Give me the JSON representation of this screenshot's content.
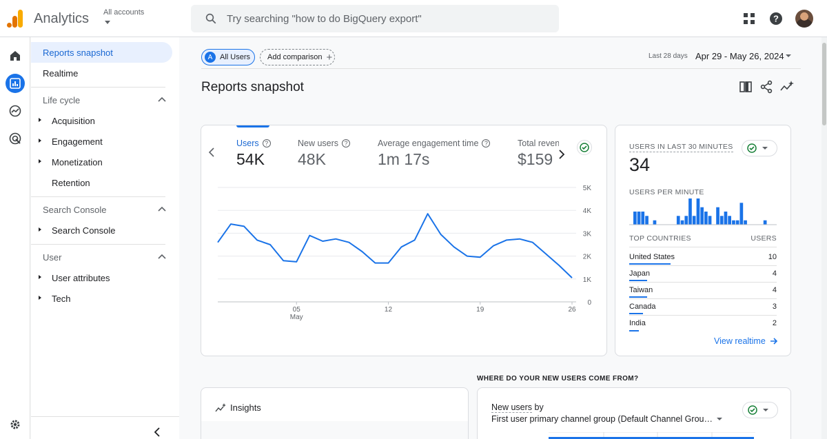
{
  "header": {
    "app_name": "Analytics",
    "accounts_label": "All accounts",
    "search_placeholder": "Try searching \"how to do BigQuery export\""
  },
  "sidebar": {
    "reports_snapshot": "Reports snapshot",
    "realtime": "Realtime",
    "sections": [
      {
        "title": "Life cycle",
        "items": [
          "Acquisition",
          "Engagement",
          "Monetization",
          "Retention"
        ]
      },
      {
        "title": "Search Console",
        "items": [
          "Search Console"
        ]
      },
      {
        "title": "User",
        "items": [
          "User attributes",
          "Tech"
        ]
      }
    ]
  },
  "toolbar": {
    "all_users": "All Users",
    "all_users_badge": "A",
    "add_comparison": "Add comparison",
    "date_label": "Last 28 days",
    "date_range": "Apr 29 - May 26, 2024"
  },
  "page": {
    "title": "Reports snapshot"
  },
  "metrics": [
    {
      "label": "Users",
      "value": "54K"
    },
    {
      "label": "New users",
      "value": "48K"
    },
    {
      "label": "Average engagement time",
      "value": "1m 17s"
    },
    {
      "label": "Total revenue",
      "value": "$159"
    }
  ],
  "chart_data": {
    "type": "line",
    "x": [
      "Apr 29",
      "Apr 30",
      "May 1",
      "May 2",
      "May 3",
      "May 4",
      "May 5",
      "May 6",
      "May 7",
      "May 8",
      "May 9",
      "May 10",
      "May 11",
      "May 12",
      "May 13",
      "May 14",
      "May 15",
      "May 16",
      "May 17",
      "May 18",
      "May 19",
      "May 20",
      "May 21",
      "May 22",
      "May 23",
      "May 24",
      "May 25",
      "May 26"
    ],
    "x_tick_labels": [
      {
        "label": "05",
        "sublabel": "May",
        "index": 6
      },
      {
        "label": "12",
        "index": 13
      },
      {
        "label": "19",
        "index": 20
      },
      {
        "label": "26",
        "index": 27
      }
    ],
    "y_tick_labels": [
      "5K",
      "4K",
      "3K",
      "2K",
      "1K",
      "0"
    ],
    "ylim": [
      0,
      5000
    ],
    "series": [
      {
        "values": [
          2600,
          3400,
          3300,
          2700,
          2500,
          1800,
          1750,
          2900,
          2650,
          2750,
          2600,
          2200,
          1700,
          1700,
          2400,
          2700,
          3850,
          2950,
          2400,
          2000,
          1950,
          2450,
          2700,
          2750,
          2600,
          2100,
          1600,
          1050
        ],
        "color": "#1a73e8"
      }
    ],
    "grid": true
  },
  "realtime": {
    "title": "USERS IN LAST 30 MINUTES",
    "value": "34",
    "per_minute_label": "USERS PER MINUTE",
    "per_minute": [
      3,
      3,
      3,
      2,
      0,
      1,
      0,
      0,
      0,
      0,
      0,
      2,
      1,
      2,
      6,
      2,
      6,
      4,
      3,
      2,
      0,
      4,
      2,
      3,
      2,
      1,
      1,
      5,
      1,
      0,
      0,
      0,
      0,
      1,
      0,
      0
    ],
    "countries_label": "TOP COUNTRIES",
    "users_label": "USERS",
    "countries": [
      {
        "name": "United States",
        "value": "10"
      },
      {
        "name": "Japan",
        "value": "4"
      },
      {
        "name": "Taiwan",
        "value": "4"
      },
      {
        "name": "Canada",
        "value": "3"
      },
      {
        "name": "India",
        "value": "2"
      }
    ],
    "view_link": "View realtime"
  },
  "bottom": {
    "section_title": "WHERE DO YOUR NEW USERS COME FROM?",
    "insights_title": "Insights",
    "new_users_title": "New users",
    "new_users_by": " by",
    "new_users_group": "First user primary channel group (Default Channel Grou…"
  },
  "colors": {
    "accent": "#1a73e8",
    "logo_orange": "#f9ab00",
    "logo_dark": "#e37400"
  }
}
